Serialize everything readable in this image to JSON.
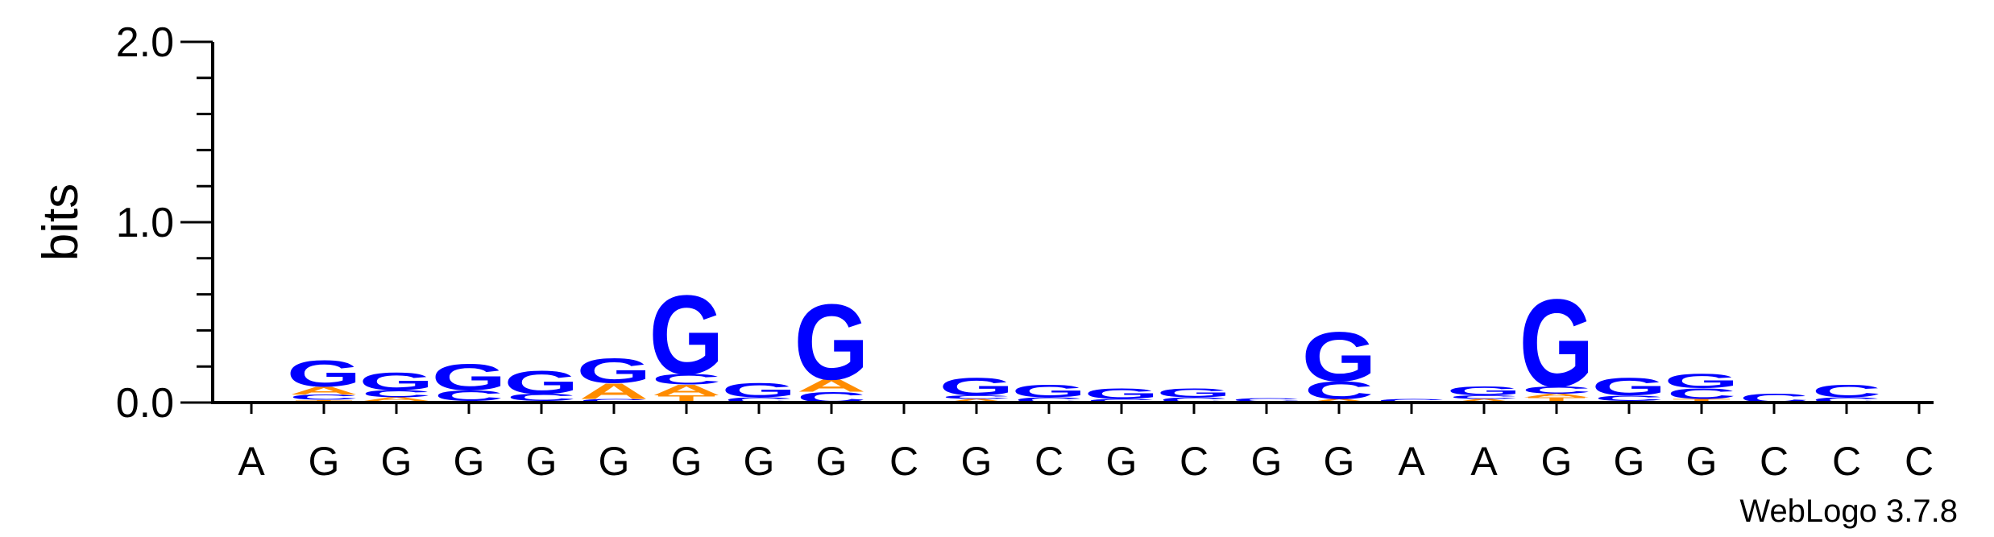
{
  "chart_data": {
    "type": "sequence-logo",
    "ylabel": "bits",
    "ylim": [
      0,
      2.0
    ],
    "yticks": [
      {
        "value": 0,
        "label": "0.0"
      },
      {
        "value": 1,
        "label": "1.0"
      },
      {
        "value": 2,
        "label": "2.0"
      }
    ],
    "xticks": [
      "A",
      "G",
      "G",
      "G",
      "G",
      "G",
      "G",
      "G",
      "G",
      "C",
      "G",
      "C",
      "G",
      "C",
      "G",
      "G",
      "A",
      "A",
      "G",
      "G",
      "G",
      "C",
      "C",
      "C"
    ],
    "colors": {
      "G": "#0000ff",
      "C": "#0000ff",
      "A": "#ff8c00",
      "T": "#ff8c00"
    },
    "columns": [
      [],
      [
        {
          "l": "T",
          "h": 0.015
        },
        {
          "l": "C",
          "h": 0.03
        },
        {
          "l": "A",
          "h": 0.045
        },
        {
          "l": "G",
          "h": 0.15
        }
      ],
      [
        {
          "l": "T",
          "h": 0.01
        },
        {
          "l": "A",
          "h": 0.02
        },
        {
          "l": "C",
          "h": 0.04
        },
        {
          "l": "G",
          "h": 0.1
        }
      ],
      [
        {
          "l": "A",
          "h": 0.01
        },
        {
          "l": "C",
          "h": 0.06
        },
        {
          "l": "G",
          "h": 0.15
        }
      ],
      [
        {
          "l": "T",
          "h": 0.01
        },
        {
          "l": "C",
          "h": 0.04
        },
        {
          "l": "G",
          "h": 0.13
        }
      ],
      [
        {
          "l": "C",
          "h": 0.02
        },
        {
          "l": "A",
          "h": 0.09
        },
        {
          "l": "G",
          "h": 0.14
        }
      ],
      [
        {
          "l": "T",
          "h": 0.04
        },
        {
          "l": "A",
          "h": 0.06
        },
        {
          "l": "C",
          "h": 0.06
        },
        {
          "l": "G",
          "h": 0.45
        }
      ],
      [
        {
          "l": "C",
          "h": 0.03
        },
        {
          "l": "G",
          "h": 0.08
        }
      ],
      [
        {
          "l": "C",
          "h": 0.06
        },
        {
          "l": "A",
          "h": 0.07
        },
        {
          "l": "G",
          "h": 0.43
        }
      ],
      [],
      [
        {
          "l": "A",
          "h": 0.02
        },
        {
          "l": "C",
          "h": 0.02
        },
        {
          "l": "G",
          "h": 0.1
        }
      ],
      [
        {
          "l": "C",
          "h": 0.03
        },
        {
          "l": "G",
          "h": 0.07
        }
      ],
      [
        {
          "l": "C",
          "h": 0.02
        },
        {
          "l": "G",
          "h": 0.06
        }
      ],
      [
        {
          "l": "C",
          "h": 0.03
        },
        {
          "l": "G",
          "h": 0.05
        }
      ],
      [
        {
          "l": "T",
          "h": 0.005
        },
        {
          "l": "C",
          "h": 0.02
        }
      ],
      [
        {
          "l": "A",
          "h": 0.02
        },
        {
          "l": "C",
          "h": 0.1
        },
        {
          "l": "G",
          "h": 0.28
        }
      ],
      [
        {
          "l": "C",
          "h": 0.02
        }
      ],
      [
        {
          "l": "A",
          "h": 0.02
        },
        {
          "l": "C",
          "h": 0.02
        },
        {
          "l": "G",
          "h": 0.05
        }
      ],
      [
        {
          "l": "T",
          "h": 0.03
        },
        {
          "l": "A",
          "h": 0.02
        },
        {
          "l": "C",
          "h": 0.04
        },
        {
          "l": "G",
          "h": 0.5
        }
      ],
      [
        {
          "l": "A",
          "h": 0.01
        },
        {
          "l": "C",
          "h": 0.03
        },
        {
          "l": "G",
          "h": 0.1
        }
      ],
      [
        {
          "l": "T",
          "h": 0.02
        },
        {
          "l": "C",
          "h": 0.06
        },
        {
          "l": "G",
          "h": 0.08
        }
      ],
      [
        {
          "l": "C",
          "h": 0.05
        }
      ],
      [
        {
          "l": "C",
          "h": 0.03
        },
        {
          "l": "C",
          "h": 0.07
        }
      ],
      []
    ]
  },
  "footer": {
    "credit": "WebLogo 3.7.8"
  }
}
